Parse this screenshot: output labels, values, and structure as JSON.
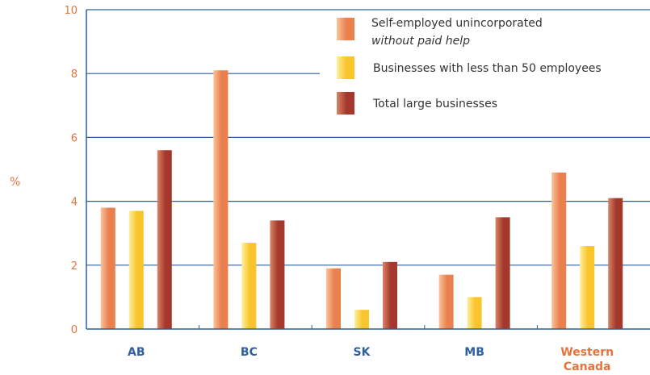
{
  "chart_data": {
    "type": "bar",
    "ylabel": "%",
    "ylim": [
      0,
      10
    ],
    "yticks": [
      "0",
      "2",
      "4",
      "6",
      "8",
      "10"
    ],
    "grid": true,
    "legend_position": "top-right",
    "categories": [
      "AB",
      "BC",
      "SK",
      "MB",
      "Western Canada"
    ],
    "category_labels": [
      [
        "AB"
      ],
      [
        "BC"
      ],
      [
        "SK"
      ],
      [
        "MB"
      ],
      [
        "Western",
        "Canada"
      ]
    ],
    "category_colors": [
      "#2e5f9e",
      "#2e5f9e",
      "#2e5f9e",
      "#2e5f9e",
      "#e5733a"
    ],
    "series": [
      {
        "name": "Self-employed unincorporated without paid help",
        "legend_lines": [
          "Self-employed unincorporated",
          "without paid help"
        ],
        "color_light": "#fbc39a",
        "color_dark": "#e9804e",
        "values": [
          3.8,
          8.1,
          1.9,
          1.7,
          4.9
        ]
      },
      {
        "name": "Businesses with less than 50 employees",
        "legend_lines": [
          "Businesses with less than 50 employees"
        ],
        "color_light": "#ffef9a",
        "color_dark": "#f9c42c",
        "values": [
          3.7,
          2.7,
          0.6,
          1.0,
          2.6
        ]
      },
      {
        "name": "Total large businesses",
        "legend_lines": [
          "Total large businesses"
        ],
        "color_light": "#d98466",
        "color_dark": "#a4382c",
        "values": [
          5.6,
          3.4,
          2.1,
          3.5,
          4.1
        ]
      }
    ],
    "colors": {
      "axis": "#2e5f9e",
      "grid": "#2e5f9e",
      "tick": "#e5733a"
    }
  }
}
